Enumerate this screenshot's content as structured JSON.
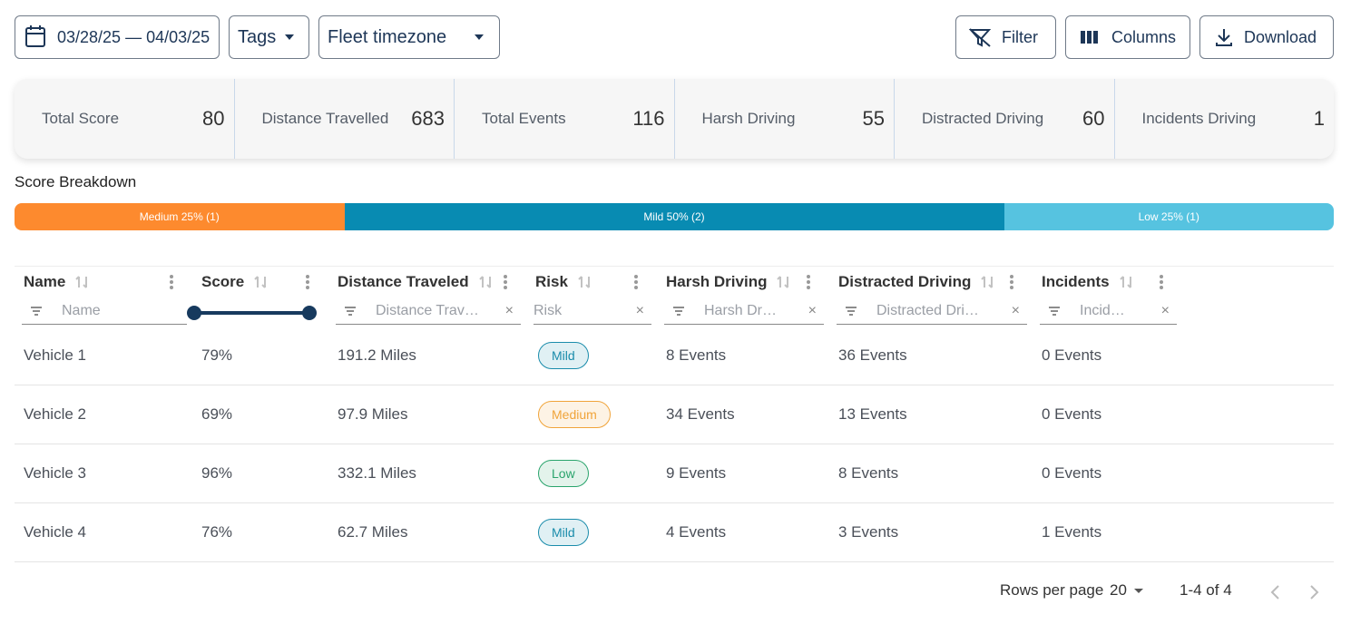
{
  "toolbar": {
    "date_range": "03/28/25 — 04/03/25",
    "tags": "Tags",
    "timezone": "Fleet timezone",
    "filter": "Filter",
    "columns": "Columns",
    "download": "Download"
  },
  "summary": [
    {
      "label": "Total Score",
      "value": 80
    },
    {
      "label": "Distance Travelled",
      "value": 683
    },
    {
      "label": "Total Events",
      "value": 116
    },
    {
      "label": "Harsh Driving",
      "value": 55
    },
    {
      "label": "Distracted Driving",
      "value": 60
    },
    {
      "label": "Incidents Driving",
      "value": 1
    }
  ],
  "breakdown": {
    "title": "Score Breakdown",
    "segments": [
      {
        "label": "Medium 25% (1)",
        "share": 25,
        "color": "#fd8a2e"
      },
      {
        "label": "Mild 50% (2)",
        "share": 50,
        "color": "#088bb2"
      },
      {
        "label": "Low 25% (1)",
        "share": 25,
        "color": "#56c3e0"
      }
    ]
  },
  "table": {
    "columns": [
      {
        "header": "Name",
        "filter": "Name"
      },
      {
        "header": "Score",
        "filter": null
      },
      {
        "header": "Distance Traveled",
        "filter": "Distance Trav…"
      },
      {
        "header": "Risk",
        "filter": "Risk"
      },
      {
        "header": "Harsh Driving",
        "filter": "Harsh Dr…"
      },
      {
        "header": "Distracted Driving",
        "filter": "Distracted Dri…"
      },
      {
        "header": "Incidents",
        "filter": "Incid…"
      }
    ],
    "rows": [
      [
        "Vehicle 1",
        "79%",
        "191.2 Miles",
        "Mild",
        "8 Events",
        "36 Events",
        "0 Events"
      ],
      [
        "Vehicle 2",
        "69%",
        "97.9 Miles",
        "Medium",
        "34 Events",
        "13 Events",
        "0 Events"
      ],
      [
        "Vehicle 3",
        "96%",
        "332.1 Miles",
        "Low",
        "9 Events",
        "8 Events",
        "0 Events"
      ],
      [
        "Vehicle 4",
        "76%",
        "62.7 Miles",
        "Mild",
        "4 Events",
        "3 Events",
        "1 Events"
      ]
    ],
    "risk_colors": [
      "#1a8cab",
      "#f0a43a",
      "#2aa46c",
      "#1a8cab"
    ]
  },
  "pagination": {
    "rows_per_page_label": "Rows per page",
    "rows_per_page": "20",
    "range": "1-4 of 4"
  }
}
